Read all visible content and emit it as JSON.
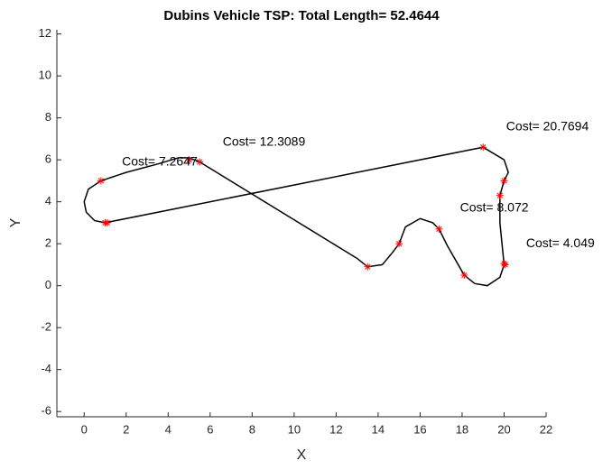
{
  "chart_data": {
    "type": "line",
    "title": "Dubins Vehicle TSP: Total Length= 52.4644",
    "xlabel": "X",
    "ylabel": "Y",
    "xlim": [
      -1.3,
      22
    ],
    "ylim": [
      -6.25,
      12.2
    ],
    "xticks": [
      0,
      2,
      4,
      6,
      8,
      10,
      12,
      14,
      16,
      18,
      20,
      22
    ],
    "yticks": [
      -6,
      -4,
      -2,
      0,
      2,
      4,
      6,
      8,
      10,
      12
    ],
    "path": {
      "color": "#000000",
      "x": [
        1,
        0.5,
        0.1,
        0,
        0.2,
        0.8,
        2,
        3.5,
        4.5,
        5,
        5.5,
        13,
        13.5,
        14.2,
        14.7,
        15,
        15.3,
        16,
        16.6,
        16.9,
        17.3,
        18.1,
        18.6,
        19.2,
        19.8,
        20,
        19.9,
        19.8,
        19.8,
        20,
        20.2,
        20,
        19,
        1
      ],
      "values": [
        3,
        3.1,
        3.5,
        4,
        4.6,
        5,
        5.4,
        5.8,
        6.1,
        6.1,
        5.9,
        1.3,
        0.9,
        1,
        1.6,
        2,
        2.8,
        3.2,
        3,
        2.7,
        1.9,
        0.5,
        0.1,
        0,
        0.4,
        1,
        2,
        3,
        4.3,
        5,
        5.4,
        6,
        6.6,
        3
      ]
    },
    "waypoints": {
      "color": "#ff0000",
      "x": [
        0.8,
        1,
        1.1,
        5,
        5.5,
        13.5,
        15,
        16.9,
        18.1,
        19,
        20,
        19.8,
        20,
        20.05
      ],
      "values": [
        5,
        3,
        3,
        6,
        5.9,
        0.9,
        2,
        2.7,
        0.5,
        6.6,
        5,
        4.3,
        1.05,
        1
      ]
    },
    "annotations": [
      {
        "text": "Cost= 7.2647",
        "x": 1.8,
        "y": 5.88
      },
      {
        "text": "Cost= 12.3089",
        "x": 6.6,
        "y": 6.83
      },
      {
        "text": "Cost= 20.7694",
        "x": 20.1,
        "y": 7.56
      },
      {
        "text": "Cost= 8.072",
        "x": 17.9,
        "y": 3.69
      },
      {
        "text": "Cost= 4.049",
        "x": 21.05,
        "y": 2.0
      }
    ]
  }
}
